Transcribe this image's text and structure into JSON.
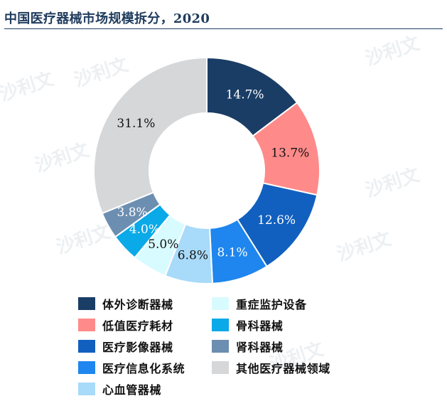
{
  "chart_data": {
    "type": "pie",
    "subtype": "donut",
    "title": "中国医疗器械市场规模拆分，2020",
    "unit": "%",
    "slices": [
      {
        "label": "体外诊断器械",
        "value": 14.7,
        "value_label": "14.7%",
        "color": "#1a3d66"
      },
      {
        "label": "低值医疗耗材",
        "value": 13.7,
        "value_label": "13.7%",
        "color": "#ff8a8a"
      },
      {
        "label": "医疗影像器械",
        "value": 12.6,
        "value_label": "12.6%",
        "color": "#1160bf"
      },
      {
        "label": "医疗信息化系统",
        "value": 8.1,
        "value_label": "8.1%",
        "color": "#1e86ee"
      },
      {
        "label": "心血管器械",
        "value": 6.8,
        "value_label": "6.8%",
        "color": "#a8daf9"
      },
      {
        "label": "重症监护设备",
        "value": 5.0,
        "value_label": "5.0%",
        "color": "#d8fbff"
      },
      {
        "label": "骨科器械",
        "value": 4.0,
        "value_label": "4.0%",
        "color": "#0aa9e8"
      },
      {
        "label": "肾科器械",
        "value": 3.8,
        "value_label": "3.8%",
        "color": "#6c8eb1"
      },
      {
        "label": "其他医疗器械领域",
        "value": 31.1,
        "value_label": "31.1%",
        "color": "#d6d7d9"
      }
    ],
    "legend_position": "bottom",
    "legend_columns": 2
  },
  "watermark": "沙利文"
}
